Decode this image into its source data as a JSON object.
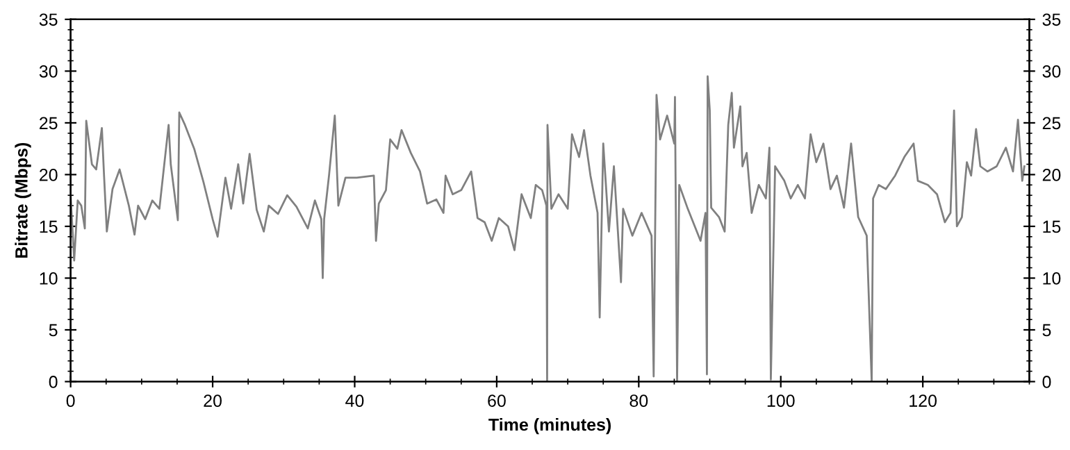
{
  "chart_data": {
    "type": "line",
    "xlabel": "Time (minutes)",
    "ylabel": "Bitrate (Mbps)",
    "xlim": [
      0,
      135
    ],
    "xticks": [
      0,
      20,
      40,
      60,
      80,
      100,
      120
    ],
    "ylim": [
      0,
      35
    ],
    "yticks": [
      0,
      5,
      10,
      15,
      20,
      25,
      30,
      35
    ],
    "y2lim": [
      0,
      35
    ],
    "y2ticks": [
      0,
      5,
      10,
      15,
      20,
      25,
      30,
      35
    ],
    "grid": false,
    "legend": false,
    "marker": "none",
    "line_style": "solid",
    "series": [
      {
        "color": "#808080",
        "x": [
          0,
          0.5,
          1,
          1.5,
          2.0,
          2.2,
          3,
          3.6,
          4.4,
          4.7,
          5.1,
          5.9,
          6.9,
          8.2,
          9.0,
          9.5,
          10.5,
          11.5,
          12.5,
          13.8,
          14.1,
          15.1,
          15.3,
          16.1,
          17.4,
          18.7,
          20,
          20.7,
          21.8,
          22.6,
          23.6,
          24.3,
          25.2,
          26.2,
          27.2,
          27.9,
          29.2,
          30.5,
          31.8,
          33.4,
          34.4,
          35.3,
          35.5,
          35.7,
          36.4,
          37.2,
          37.7,
          38.7,
          40.3,
          42.7,
          43,
          43.4,
          44.4,
          45,
          46,
          46.6,
          47.9,
          49.2,
          50.2,
          51.5,
          52.5,
          52.8,
          53.8,
          55,
          56.4,
          57.3,
          58.3,
          59.3,
          60.3,
          61.6,
          62.5,
          63.5,
          64.8,
          65.5,
          66.4,
          67.0,
          67.1,
          67.15,
          67.7,
          68.7,
          70,
          70.6,
          71.6,
          72.3,
          73.2,
          74.2,
          74.5,
          75,
          75.8,
          76.5,
          77.5,
          77.8,
          79.1,
          80.4,
          81.8,
          82.1,
          82.5,
          83,
          84,
          85,
          85.1,
          85.4,
          85.7,
          86.9,
          88.7,
          89.4,
          89.6,
          89.7,
          90,
          90.2,
          91.3,
          92.1,
          92.6,
          93.1,
          93.4,
          94.3,
          94.6,
          95.2,
          95.9,
          96.9,
          97.9,
          98.4,
          98.6,
          99.2,
          100.5,
          101.4,
          102.4,
          103.4,
          104.2,
          105,
          106,
          107,
          107.9,
          108.9,
          109.9,
          110.9,
          112.1,
          112.8,
          113,
          113.8,
          114.8,
          116.1,
          117.4,
          118.7,
          119.3,
          120.7,
          122,
          123.1,
          123.9,
          124.4,
          124.8,
          125.5,
          126.2,
          126.8,
          127.5,
          128.1,
          129.1,
          130.4,
          131.7,
          132.7,
          133.4,
          134,
          134.3
        ],
        "values": [
          18,
          11.7,
          17.5,
          17,
          14.8,
          25.2,
          21,
          20.5,
          24.5,
          20,
          14.5,
          18.6,
          20.5,
          17,
          14.2,
          17,
          15.7,
          17.5,
          16.7,
          24.8,
          21,
          15.6,
          26,
          24.8,
          22.5,
          19.3,
          15.7,
          14,
          19.7,
          16.7,
          21,
          17.2,
          22,
          16.6,
          14.5,
          17,
          16.2,
          18,
          16.9,
          14.8,
          17.5,
          15.7,
          10,
          15.7,
          20,
          25.7,
          17,
          19.7,
          19.7,
          19.9,
          13.6,
          17.2,
          18.5,
          23.4,
          22.5,
          24.3,
          22.1,
          20.3,
          17.2,
          17.6,
          16.3,
          19.9,
          18.1,
          18.5,
          20.3,
          15.8,
          15.4,
          13.6,
          15.8,
          15,
          12.7,
          18.1,
          15.8,
          19,
          18.5,
          17,
          0,
          24.8,
          16.7,
          18.1,
          16.7,
          23.9,
          21.7,
          24.3,
          19.9,
          16.3,
          6.2,
          23,
          14.5,
          20.8,
          9.6,
          16.7,
          14.1,
          16.3,
          14.1,
          0.5,
          27.7,
          23.4,
          25.7,
          23,
          27.5,
          0,
          19,
          16.7,
          13.6,
          16.3,
          0.7,
          29.5,
          26.2,
          16.8,
          15.9,
          14.5,
          24.8,
          27.9,
          22.6,
          26.6,
          20.8,
          22.1,
          16.3,
          19,
          17.7,
          22.6,
          0.2,
          20.8,
          19.4,
          17.7,
          19,
          17.7,
          23.9,
          21.2,
          23,
          18.6,
          19.9,
          16.8,
          23,
          15.9,
          14.1,
          0,
          17.7,
          19,
          18.6,
          19.9,
          21.7,
          23,
          19.4,
          19,
          18.1,
          15.4,
          16.3,
          26.2,
          15,
          15.9,
          21.2,
          19.9,
          24.4,
          20.8,
          20.3,
          20.8,
          22.6,
          20.3,
          25.3,
          19.4,
          20.8
        ]
      }
    ]
  }
}
